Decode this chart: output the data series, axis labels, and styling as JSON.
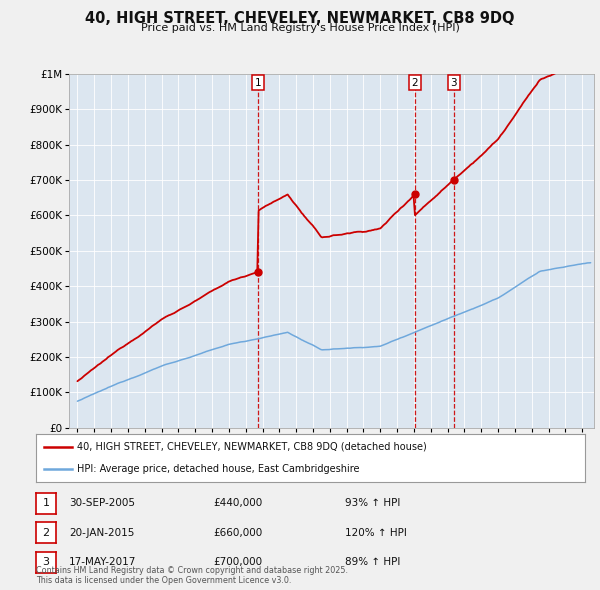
{
  "title_line1": "40, HIGH STREET, CHEVELEY, NEWMARKET, CB8 9DQ",
  "title_line2": "Price paid vs. HM Land Registry's House Price Index (HPI)",
  "background_color": "#f0f0f0",
  "plot_bg_color": "#dce6f0",
  "red_line_label": "40, HIGH STREET, CHEVELEY, NEWMARKET, CB8 9DQ (detached house)",
  "blue_line_label": "HPI: Average price, detached house, East Cambridgeshire",
  "transactions": [
    {
      "num": 1,
      "date_str": "30-SEP-2005",
      "date_x": 2005.75,
      "price": 440000,
      "pct": "93%",
      "dir": "↑"
    },
    {
      "num": 2,
      "date_str": "20-JAN-2015",
      "date_x": 2015.05,
      "price": 660000,
      "pct": "120%",
      "dir": "↑"
    },
    {
      "num": 3,
      "date_str": "17-MAY-2017",
      "date_x": 2017.37,
      "price": 700000,
      "pct": "89%",
      "dir": "↑"
    }
  ],
  "footnote": "Contains HM Land Registry data © Crown copyright and database right 2025.\nThis data is licensed under the Open Government Licence v3.0.",
  "ylim": [
    0,
    1000000
  ],
  "xlim_start": 1994.5,
  "xlim_end": 2025.7
}
